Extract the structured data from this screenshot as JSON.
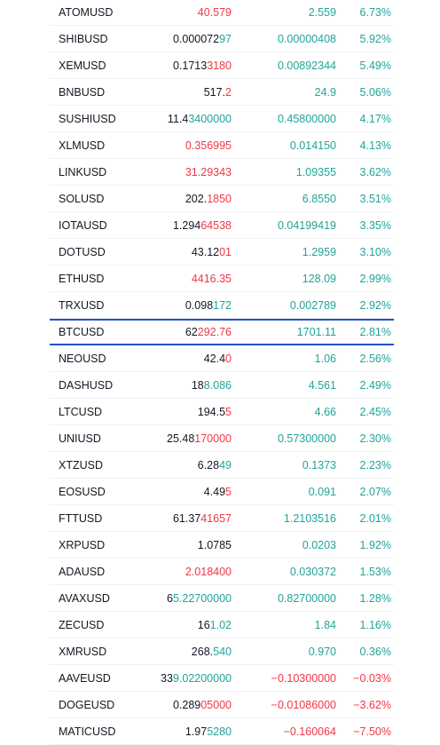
{
  "colors": {
    "text": "#131722",
    "up": "#22a399",
    "down": "#f23645",
    "highlight_border": "#1e53c9",
    "row_divider": "#eef0f3"
  },
  "rows": [
    {
      "symbol": "ATOMUSD",
      "last_base": "",
      "last_tick": "40.579",
      "last_dir": "down",
      "change": "2.559",
      "change_dir": "up",
      "change_pct": "6.73%",
      "highlighted": false
    },
    {
      "symbol": "SHIBUSD",
      "last_base": "0.000072",
      "last_tick": "97",
      "last_dir": "up",
      "change": "0.00000408",
      "change_dir": "up",
      "change_pct": "5.92%",
      "highlighted": false
    },
    {
      "symbol": "XEMUSD",
      "last_base": "0.1713",
      "last_tick": "3180",
      "last_dir": "down",
      "change": "0.00892344",
      "change_dir": "up",
      "change_pct": "5.49%",
      "highlighted": false
    },
    {
      "symbol": "BNBUSD",
      "last_base": "517.",
      "last_tick": "2",
      "last_dir": "down",
      "change": "24.9",
      "change_dir": "up",
      "change_pct": "5.06%",
      "highlighted": false
    },
    {
      "symbol": "SUSHIUSD",
      "last_base": "11.4",
      "last_tick": "3400000",
      "last_dir": "up",
      "change": "0.45800000",
      "change_dir": "up",
      "change_pct": "4.17%",
      "highlighted": false
    },
    {
      "symbol": "XLMUSD",
      "last_base": "",
      "last_tick": "0.356995",
      "last_dir": "down",
      "change": "0.014150",
      "change_dir": "up",
      "change_pct": "4.13%",
      "highlighted": false
    },
    {
      "symbol": "LINKUSD",
      "last_base": "",
      "last_tick": "31.29343",
      "last_dir": "down",
      "change": "1.09355",
      "change_dir": "up",
      "change_pct": "3.62%",
      "highlighted": false
    },
    {
      "symbol": "SOLUSD",
      "last_base": "202.",
      "last_tick": "1850",
      "last_dir": "down",
      "change": "6.8550",
      "change_dir": "up",
      "change_pct": "3.51%",
      "highlighted": false
    },
    {
      "symbol": "IOTAUSD",
      "last_base": "1.294",
      "last_tick": "64538",
      "last_dir": "down",
      "change": "0.04199419",
      "change_dir": "up",
      "change_pct": "3.35%",
      "highlighted": false
    },
    {
      "symbol": "DOTUSD",
      "last_base": "43.12",
      "last_tick": "01",
      "last_dir": "down",
      "change": "1.2959",
      "change_dir": "up",
      "change_pct": "3.10%",
      "highlighted": false
    },
    {
      "symbol": "ETHUSD",
      "last_base": "",
      "last_tick": "4416.35",
      "last_dir": "down",
      "change": "128.09",
      "change_dir": "up",
      "change_pct": "2.99%",
      "highlighted": false
    },
    {
      "symbol": "TRXUSD",
      "last_base": "0.098",
      "last_tick": "172",
      "last_dir": "up",
      "change": "0.002789",
      "change_dir": "up",
      "change_pct": "2.92%",
      "highlighted": false
    },
    {
      "symbol": "BTCUSD",
      "last_base": "62",
      "last_tick": "292.76",
      "last_dir": "down",
      "change": "1701.11",
      "change_dir": "up",
      "change_pct": "2.81%",
      "highlighted": true
    },
    {
      "symbol": "NEOUSD",
      "last_base": "42.4",
      "last_tick": "0",
      "last_dir": "down",
      "change": "1.06",
      "change_dir": "up",
      "change_pct": "2.56%",
      "highlighted": false
    },
    {
      "symbol": "DASHUSD",
      "last_base": "18",
      "last_tick": "8.086",
      "last_dir": "up",
      "change": "4.561",
      "change_dir": "up",
      "change_pct": "2.49%",
      "highlighted": false
    },
    {
      "symbol": "LTCUSD",
      "last_base": "194.5",
      "last_tick": "5",
      "last_dir": "down",
      "change": "4.66",
      "change_dir": "up",
      "change_pct": "2.45%",
      "highlighted": false
    },
    {
      "symbol": "UNIUSD",
      "last_base": "25.48",
      "last_tick": "170000",
      "last_dir": "down",
      "change": "0.57300000",
      "change_dir": "up",
      "change_pct": "2.30%",
      "highlighted": false
    },
    {
      "symbol": "XTZUSD",
      "last_base": "6.28",
      "last_tick": "49",
      "last_dir": "up",
      "change": "0.1373",
      "change_dir": "up",
      "change_pct": "2.23%",
      "highlighted": false
    },
    {
      "symbol": "EOSUSD",
      "last_base": "4.49",
      "last_tick": "5",
      "last_dir": "down",
      "change": "0.091",
      "change_dir": "up",
      "change_pct": "2.07%",
      "highlighted": false
    },
    {
      "symbol": "FTTUSD",
      "last_base": "61.37",
      "last_tick": "41657",
      "last_dir": "down",
      "change": "1.2103516",
      "change_dir": "up",
      "change_pct": "2.01%",
      "highlighted": false
    },
    {
      "symbol": "XRPUSD",
      "last_base": "1.0785",
      "last_tick": "",
      "last_dir": "neutral",
      "change": "0.0203",
      "change_dir": "up",
      "change_pct": "1.92%",
      "highlighted": false
    },
    {
      "symbol": "ADAUSD",
      "last_base": "",
      "last_tick": "2.018400",
      "last_dir": "down",
      "change": "0.030372",
      "change_dir": "up",
      "change_pct": "1.53%",
      "highlighted": false
    },
    {
      "symbol": "AVAXUSD",
      "last_base": "6",
      "last_tick": "5.22700000",
      "last_dir": "up",
      "change": "0.82700000",
      "change_dir": "up",
      "change_pct": "1.28%",
      "highlighted": false
    },
    {
      "symbol": "ZECUSD",
      "last_base": "16",
      "last_tick": "1.02",
      "last_dir": "up",
      "change": "1.84",
      "change_dir": "up",
      "change_pct": "1.16%",
      "highlighted": false
    },
    {
      "symbol": "XMRUSD",
      "last_base": "268.",
      "last_tick": "540",
      "last_dir": "up",
      "change": "0.970",
      "change_dir": "up",
      "change_pct": "0.36%",
      "highlighted": false
    },
    {
      "symbol": "AAVEUSD",
      "last_base": "33",
      "last_tick": "9.02200000",
      "last_dir": "up",
      "change": "−0.10300000",
      "change_dir": "down",
      "change_pct": "−0.03%",
      "highlighted": false
    },
    {
      "symbol": "DOGEUSD",
      "last_base": "0.289",
      "last_tick": "05000",
      "last_dir": "down",
      "change": "−0.01086000",
      "change_dir": "down",
      "change_pct": "−3.62%",
      "highlighted": false
    },
    {
      "symbol": "MATICUSD",
      "last_base": "1.97",
      "last_tick": "5280",
      "last_dir": "up",
      "change": "−0.160064",
      "change_dir": "down",
      "change_pct": "−7.50%",
      "highlighted": false
    }
  ]
}
